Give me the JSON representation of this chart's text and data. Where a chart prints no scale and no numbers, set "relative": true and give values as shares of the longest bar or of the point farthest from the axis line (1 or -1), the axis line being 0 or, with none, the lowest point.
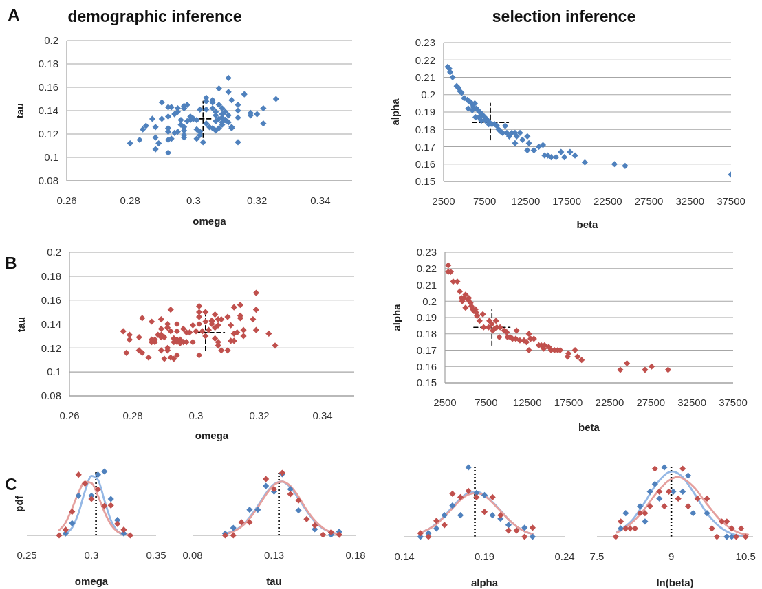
{
  "chart_data": [
    {
      "type": "scatter",
      "title": "demographic inference",
      "xlabel": "omega",
      "ylabel": "tau",
      "annotations": [
        "A"
      ],
      "xlim": [
        0.26,
        0.35
      ],
      "xticks": [
        0.26,
        0.28,
        0.3,
        0.32,
        0.34
      ],
      "ylim": [
        0.08,
        0.2
      ],
      "yticks": [
        0.08,
        0.1,
        0.12,
        0.14,
        0.16,
        0.18,
        0.2
      ],
      "grid": "y",
      "marker": "diamond",
      "series": [
        {
          "color": "#4f81bd",
          "x": [
            0.28,
            0.283,
            0.284,
            0.285,
            0.287,
            0.288,
            0.288,
            0.289,
            0.288,
            0.29,
            0.29,
            0.292,
            0.293,
            0.292,
            0.292,
            0.292,
            0.292,
            0.292,
            0.293,
            0.294,
            0.295,
            0.295,
            0.294,
            0.295,
            0.296,
            0.296,
            0.297,
            0.297,
            0.298,
            0.297,
            0.297,
            0.297,
            0.297,
            0.298,
            0.299,
            0.299,
            0.3,
            0.301,
            0.301,
            0.302,
            0.302,
            0.302,
            0.301,
            0.303,
            0.304,
            0.304,
            0.304,
            0.304,
            0.305,
            0.306,
            0.306,
            0.306,
            0.306,
            0.307,
            0.307,
            0.307,
            0.307,
            0.308,
            0.308,
            0.308,
            0.309,
            0.309,
            0.309,
            0.31,
            0.31,
            0.311,
            0.311,
            0.311,
            0.311,
            0.312,
            0.312,
            0.312,
            0.314,
            0.314,
            0.314,
            0.314,
            0.316,
            0.318,
            0.318,
            0.32,
            0.322,
            0.322,
            0.326,
            0.308,
            0.309,
            0.31,
            0.309
          ],
          "values": [
            0.112,
            0.115,
            0.124,
            0.127,
            0.133,
            0.126,
            0.107,
            0.112,
            0.117,
            0.147,
            0.133,
            0.143,
            0.143,
            0.135,
            0.125,
            0.122,
            0.115,
            0.104,
            0.116,
            0.137,
            0.139,
            0.142,
            0.121,
            0.122,
            0.132,
            0.128,
            0.142,
            0.144,
            0.145,
            0.119,
            0.117,
            0.123,
            0.126,
            0.131,
            0.135,
            0.132,
            0.133,
            0.132,
            0.124,
            0.141,
            0.122,
            0.119,
            0.116,
            0.113,
            0.151,
            0.148,
            0.141,
            0.129,
            0.126,
            0.125,
            0.149,
            0.147,
            0.142,
            0.139,
            0.136,
            0.131,
            0.123,
            0.125,
            0.159,
            0.145,
            0.142,
            0.137,
            0.134,
            0.132,
            0.139,
            0.136,
            0.156,
            0.168,
            0.13,
            0.126,
            0.149,
            0.125,
            0.145,
            0.14,
            0.134,
            0.113,
            0.154,
            0.136,
            0.138,
            0.137,
            0.142,
            0.129,
            0.15,
            0.133,
            0.13,
            0.132,
            0.128
          ]
        },
        {
          "type": "line",
          "color": "#000000",
          "line_style": "dashed",
          "marker": "none",
          "x": [
            0.303,
            0.303
          ],
          "values": [
            0.117,
            0.148
          ]
        },
        {
          "type": "line",
          "color": "#000000",
          "line_style": "dashed",
          "marker": "none",
          "x": [
            0.302,
            0.306
          ],
          "values": [
            0.133,
            0.133
          ]
        }
      ]
    },
    {
      "type": "scatter",
      "title": "selection inference",
      "xlabel": "beta",
      "ylabel": "alpha",
      "xlim": [
        2500,
        37500
      ],
      "xticks": [
        2500,
        7500,
        12500,
        17500,
        22500,
        27500,
        32500,
        37500
      ],
      "ylim": [
        0.15,
        0.23
      ],
      "yticks": [
        0.15,
        0.16,
        0.17,
        0.18,
        0.19,
        0.2,
        0.21,
        0.22,
        0.23
      ],
      "grid": "y",
      "marker": "diamond",
      "series": [
        {
          "color": "#4f81bd",
          "x": [
            3000,
            3200,
            3300,
            3600,
            4100,
            4300,
            4500,
            4700,
            5000,
            5400,
            5700,
            5900,
            6100,
            6300,
            6500,
            6700,
            6900,
            7100,
            7300,
            7500,
            7700,
            7900,
            8100,
            8400,
            8700,
            9000,
            9200,
            9400,
            9700,
            10000,
            10200,
            10500,
            10800,
            11200,
            11400,
            11800,
            12100,
            11200,
            12700,
            12900,
            12700,
            13500,
            14100,
            14600,
            14800,
            15200,
            15600,
            16200,
            16800,
            17200,
            17900,
            18500,
            19700,
            23300,
            24600,
            37500,
            5500,
            6000,
            6400,
            6800,
            7100,
            7600,
            8000
          ],
          "values": [
            0.216,
            0.215,
            0.213,
            0.21,
            0.205,
            0.204,
            0.202,
            0.201,
            0.198,
            0.197,
            0.196,
            0.195,
            0.193,
            0.195,
            0.192,
            0.191,
            0.19,
            0.189,
            0.188,
            0.187,
            0.186,
            0.185,
            0.184,
            0.183,
            0.183,
            0.182,
            0.18,
            0.179,
            0.178,
            0.182,
            0.178,
            0.176,
            0.178,
            0.178,
            0.176,
            0.178,
            0.174,
            0.172,
            0.176,
            0.172,
            0.168,
            0.168,
            0.17,
            0.171,
            0.165,
            0.165,
            0.164,
            0.164,
            0.167,
            0.164,
            0.167,
            0.165,
            0.161,
            0.16,
            0.159,
            0.154,
            0.192,
            0.191,
            0.187,
            0.187,
            0.185,
            0.185,
            0.183
          ]
        },
        {
          "type": "line",
          "color": "#000000",
          "line_style": "dashed",
          "marker": "none",
          "x": [
            8200,
            8200
          ],
          "values": [
            0.174,
            0.195
          ]
        },
        {
          "type": "line",
          "color": "#000000",
          "line_style": "dashed",
          "marker": "none",
          "x": [
            6000,
            10400
          ],
          "values": [
            0.184,
            0.184
          ]
        }
      ]
    },
    {
      "type": "scatter",
      "xlabel": "omega",
      "ylabel": "tau",
      "annotations": [
        "B"
      ],
      "xlim": [
        0.26,
        0.35
      ],
      "xticks": [
        0.26,
        0.28,
        0.3,
        0.32,
        0.34
      ],
      "ylim": [
        0.08,
        0.2
      ],
      "yticks": [
        0.08,
        0.1,
        0.12,
        0.14,
        0.16,
        0.18,
        0.2
      ],
      "grid": "y",
      "marker": "diamond",
      "series": [
        {
          "color": "#c0504d",
          "x": [
            0.277,
            0.278,
            0.279,
            0.279,
            0.282,
            0.282,
            0.283,
            0.283,
            0.285,
            0.286,
            0.286,
            0.286,
            0.287,
            0.287,
            0.288,
            0.289,
            0.289,
            0.289,
            0.289,
            0.289,
            0.29,
            0.29,
            0.291,
            0.291,
            0.291,
            0.291,
            0.292,
            0.292,
            0.292,
            0.293,
            0.293,
            0.293,
            0.294,
            0.294,
            0.294,
            0.294,
            0.294,
            0.295,
            0.295,
            0.296,
            0.296,
            0.297,
            0.297,
            0.298,
            0.299,
            0.299,
            0.3,
            0.301,
            0.301,
            0.301,
            0.301,
            0.301,
            0.302,
            0.303,
            0.303,
            0.303,
            0.304,
            0.305,
            0.305,
            0.305,
            0.306,
            0.306,
            0.306,
            0.307,
            0.307,
            0.307,
            0.307,
            0.308,
            0.308,
            0.31,
            0.31,
            0.311,
            0.311,
            0.312,
            0.312,
            0.312,
            0.313,
            0.314,
            0.314,
            0.314,
            0.315,
            0.315,
            0.318,
            0.319,
            0.319,
            0.319,
            0.323,
            0.325
          ],
          "values": [
            0.134,
            0.116,
            0.131,
            0.127,
            0.129,
            0.118,
            0.116,
            0.145,
            0.112,
            0.125,
            0.142,
            0.127,
            0.125,
            0.127,
            0.131,
            0.144,
            0.136,
            0.129,
            0.118,
            0.131,
            0.111,
            0.129,
            0.14,
            0.137,
            0.12,
            0.118,
            0.134,
            0.152,
            0.112,
            0.128,
            0.125,
            0.111,
            0.125,
            0.114,
            0.14,
            0.134,
            0.127,
            0.124,
            0.127,
            0.136,
            0.125,
            0.133,
            0.125,
            0.133,
            0.125,
            0.139,
            0.134,
            0.155,
            0.15,
            0.146,
            0.114,
            0.14,
            0.134,
            0.13,
            0.15,
            0.142,
            0.135,
            0.142,
            0.14,
            0.143,
            0.148,
            0.137,
            0.128,
            0.139,
            0.122,
            0.125,
            0.144,
            0.118,
            0.144,
            0.118,
            0.146,
            0.139,
            0.126,
            0.154,
            0.126,
            0.132,
            0.133,
            0.147,
            0.145,
            0.156,
            0.13,
            0.135,
            0.144,
            0.166,
            0.152,
            0.135,
            0.132,
            0.122
          ]
        },
        {
          "type": "line",
          "color": "#000000",
          "line_style": "dashed",
          "marker": "none",
          "x": [
            0.303,
            0.303
          ],
          "values": [
            0.118,
            0.148
          ]
        },
        {
          "type": "line",
          "color": "#000000",
          "line_style": "dashed",
          "marker": "none",
          "x": [
            0.3,
            0.309
          ],
          "values": [
            0.133,
            0.133
          ]
        }
      ]
    },
    {
      "type": "scatter",
      "xlabel": "beta",
      "ylabel": "alpha",
      "xlim": [
        2500,
        37500
      ],
      "xticks": [
        2500,
        7500,
        12500,
        17500,
        22500,
        27500,
        32500,
        37500
      ],
      "ylim": [
        0.15,
        0.23
      ],
      "yticks": [
        0.15,
        0.16,
        0.17,
        0.18,
        0.19,
        0.2,
        0.21,
        0.22,
        0.23
      ],
      "grid": "y",
      "marker": "diamond",
      "series": [
        {
          "color": "#c0504d",
          "x": [
            2900,
            2900,
            3200,
            3500,
            4000,
            4300,
            4500,
            4600,
            4800,
            5000,
            5000,
            5300,
            5400,
            5600,
            5700,
            5900,
            6000,
            6200,
            6300,
            6400,
            6700,
            7100,
            7200,
            7800,
            7900,
            8200,
            8300,
            8500,
            8700,
            8800,
            9100,
            9200,
            9700,
            10000,
            10100,
            10400,
            10700,
            11100,
            11200,
            11600,
            12100,
            12400,
            12700,
            12700,
            12900,
            13300,
            13900,
            14200,
            14500,
            14600,
            15100,
            15400,
            15800,
            16200,
            16500,
            17400,
            17500,
            18300,
            18600,
            19100,
            23800,
            24600,
            26800,
            27600,
            29600
          ],
          "values": [
            0.222,
            0.218,
            0.218,
            0.212,
            0.212,
            0.206,
            0.202,
            0.2,
            0.202,
            0.204,
            0.196,
            0.201,
            0.202,
            0.199,
            0.197,
            0.195,
            0.194,
            0.195,
            0.193,
            0.191,
            0.188,
            0.192,
            0.184,
            0.184,
            0.188,
            0.186,
            0.182,
            0.183,
            0.188,
            0.184,
            0.178,
            0.184,
            0.182,
            0.181,
            0.178,
            0.178,
            0.177,
            0.177,
            0.182,
            0.176,
            0.176,
            0.175,
            0.18,
            0.17,
            0.177,
            0.177,
            0.173,
            0.173,
            0.171,
            0.173,
            0.172,
            0.17,
            0.17,
            0.17,
            0.17,
            0.166,
            0.168,
            0.17,
            0.166,
            0.164,
            0.158,
            0.162,
            0.158,
            0.16,
            0.158
          ]
        },
        {
          "type": "line",
          "color": "#000000",
          "line_style": "dashed",
          "marker": "none",
          "x": [
            8200,
            8200
          ],
          "values": [
            0.173,
            0.195
          ]
        },
        {
          "type": "line",
          "color": "#000000",
          "line_style": "dashed",
          "marker": "none",
          "x": [
            6000,
            10400
          ],
          "values": [
            0.184,
            0.184
          ]
        }
      ]
    },
    {
      "type": "scatter",
      "xlabel": "omega",
      "ylabel": "pdf",
      "annotations": [
        "C"
      ],
      "relative": true,
      "xlim": [
        0.25,
        0.35
      ],
      "xticks": [
        0.25,
        0.3,
        0.35
      ],
      "marker": "diamond",
      "ref_lines": [
        {
          "axis": "x",
          "value": 0.3035,
          "color": "#000000",
          "line_style": "dotted"
        }
      ],
      "series": [
        {
          "color": "#4f81bd",
          "x": [
            0.28,
            0.285,
            0.29,
            0.3,
            0.305,
            0.31,
            0.315,
            0.32,
            0.325
          ],
          "values": [
            0.03,
            0.19,
            0.62,
            0.62,
            0.95,
            1.0,
            0.57,
            0.24,
            0.03
          ]
        },
        {
          "color": "#c0504d",
          "x": [
            0.275,
            0.28,
            0.285,
            0.29,
            0.295,
            0.3,
            0.305,
            0.31,
            0.315,
            0.32,
            0.325,
            0.33
          ],
          "values": [
            0,
            0.09,
            0.37,
            0.95,
            0.81,
            0.57,
            0.72,
            0.46,
            0.47,
            0.18,
            0.09,
            0
          ]
        },
        {
          "type": "line",
          "color": "#95b8e5",
          "marker": "none",
          "x": [
            0.28,
            0.285,
            0.29,
            0.295,
            0.3,
            0.305,
            0.31,
            0.315,
            0.32,
            0.325
          ],
          "values": [
            0.03,
            0.12,
            0.35,
            0.69,
            0.93,
            0.87,
            0.55,
            0.24,
            0.07,
            0.01
          ]
        },
        {
          "type": "line",
          "color": "#e5a09e",
          "marker": "none",
          "x": [
            0.275,
            0.28,
            0.285,
            0.29,
            0.295,
            0.3,
            0.305,
            0.31,
            0.315,
            0.32,
            0.325,
            0.33
          ],
          "values": [
            0.08,
            0.2,
            0.42,
            0.67,
            0.84,
            0.82,
            0.62,
            0.37,
            0.17,
            0.06,
            0.02,
            0.01
          ]
        }
      ]
    },
    {
      "type": "scatter",
      "xlabel": "tau",
      "relative": true,
      "xlim": [
        0.08,
        0.18
      ],
      "xticks": [
        0.08,
        0.13,
        0.18
      ],
      "marker": "diamond",
      "ref_lines": [
        {
          "axis": "x",
          "value": 0.133,
          "color": "#000000",
          "line_style": "dotted"
        }
      ],
      "series": [
        {
          "color": "#4f81bd",
          "x": [
            0.1,
            0.105,
            0.115,
            0.12,
            0.125,
            0.13,
            0.135,
            0.14,
            0.145,
            0.155,
            0.165,
            0.17
          ],
          "values": [
            0.03,
            0.12,
            0.41,
            0.41,
            0.79,
            0.7,
            0.98,
            0.74,
            0.4,
            0.1,
            0.01,
            0.06
          ]
        },
        {
          "color": "#c0504d",
          "x": [
            0.1,
            0.105,
            0.11,
            0.115,
            0.125,
            0.13,
            0.135,
            0.14,
            0.145,
            0.15,
            0.155,
            0.16,
            0.165,
            0.17
          ],
          "values": [
            0,
            0,
            0.21,
            0.21,
            0.9,
            0.74,
            1.0,
            0.66,
            0.56,
            0.26,
            0.16,
            0.01,
            0.05,
            0.01
          ]
        },
        {
          "type": "line",
          "color": "#95b8e5",
          "marker": "none",
          "x": [
            0.1,
            0.105,
            0.11,
            0.115,
            0.12,
            0.125,
            0.13,
            0.135,
            0.14,
            0.145,
            0.15,
            0.155,
            0.16,
            0.165,
            0.17
          ],
          "values": [
            0.03,
            0.07,
            0.15,
            0.29,
            0.47,
            0.67,
            0.82,
            0.86,
            0.77,
            0.59,
            0.39,
            0.22,
            0.11,
            0.05,
            0.02
          ]
        },
        {
          "type": "line",
          "color": "#e5a09e",
          "marker": "none",
          "x": [
            0.1,
            0.105,
            0.11,
            0.115,
            0.12,
            0.125,
            0.13,
            0.135,
            0.14,
            0.145,
            0.15,
            0.155,
            0.16,
            0.165,
            0.17
          ],
          "values": [
            0.02,
            0.06,
            0.14,
            0.27,
            0.45,
            0.65,
            0.81,
            0.86,
            0.79,
            0.62,
            0.41,
            0.24,
            0.12,
            0.05,
            0.02
          ]
        }
      ]
    },
    {
      "type": "scatter",
      "xlabel": "alpha",
      "relative": true,
      "xlim": [
        0.14,
        0.24
      ],
      "xticks": [
        0.14,
        0.19,
        0.24
      ],
      "marker": "diamond",
      "ref_lines": [
        {
          "axis": "x",
          "value": 0.184,
          "color": "#000000",
          "line_style": "dotted"
        }
      ],
      "series": [
        {
          "color": "#4f81bd",
          "x": [
            0.15,
            0.155,
            0.16,
            0.165,
            0.17,
            0.175,
            0.18,
            0.185,
            0.19,
            0.195,
            0.2,
            0.205,
            0.215,
            0.22
          ],
          "values": [
            0,
            0.05,
            0.12,
            0.31,
            0.45,
            0.31,
            1.0,
            0.63,
            0.6,
            0.31,
            0.26,
            0.17,
            0.13,
            0
          ]
        },
        {
          "color": "#c0504d",
          "x": [
            0.15,
            0.155,
            0.16,
            0.165,
            0.17,
            0.175,
            0.18,
            0.185,
            0.19,
            0.195,
            0.2,
            0.205,
            0.21,
            0.215,
            0.22
          ],
          "values": [
            0.05,
            0,
            0.23,
            0.17,
            0.62,
            0.57,
            0.66,
            0.57,
            0.36,
            0.57,
            0.31,
            0.09,
            0.09,
            0,
            0.13
          ]
        },
        {
          "type": "line",
          "color": "#95b8e5",
          "marker": "none",
          "x": [
            0.15,
            0.155,
            0.16,
            0.165,
            0.17,
            0.175,
            0.18,
            0.185,
            0.19,
            0.195,
            0.2,
            0.205,
            0.21,
            0.215,
            0.22
          ],
          "values": [
            0.06,
            0.11,
            0.19,
            0.3,
            0.43,
            0.55,
            0.63,
            0.65,
            0.6,
            0.5,
            0.38,
            0.25,
            0.15,
            0.08,
            0.04
          ]
        },
        {
          "type": "line",
          "color": "#e5a09e",
          "marker": "none",
          "x": [
            0.15,
            0.155,
            0.16,
            0.165,
            0.17,
            0.175,
            0.18,
            0.185,
            0.19,
            0.195,
            0.2,
            0.205,
            0.21,
            0.215,
            0.22
          ],
          "values": [
            0.06,
            0.11,
            0.18,
            0.29,
            0.41,
            0.53,
            0.61,
            0.63,
            0.59,
            0.49,
            0.37,
            0.25,
            0.15,
            0.08,
            0.04
          ]
        }
      ]
    },
    {
      "type": "scatter",
      "xlabel": "ln(beta)",
      "relative": true,
      "xlim": [
        7.5,
        10.65
      ],
      "xticks": [
        7.5,
        9,
        10.5
      ],
      "marker": "diamond",
      "ref_lines": [
        {
          "axis": "x",
          "value": 9,
          "color": "#000000",
          "line_style": "dotted"
        }
      ],
      "series": [
        {
          "color": "#4f81bd",
          "x": [
            7.98,
            8.08,
            8.37,
            8.47,
            8.57,
            8.67,
            8.76,
            8.86,
            9.04,
            9.23,
            9.34,
            9.44,
            9.72,
            10.12,
            10.22
          ],
          "values": [
            0.12,
            0.34,
            0.44,
            0.22,
            0.65,
            0.76,
            0.55,
            1.0,
            0.65,
            0.65,
            0.88,
            0.34,
            0.34,
            0,
            0
          ]
        },
        {
          "color": "#c0504d",
          "x": [
            7.88,
            7.98,
            8.08,
            8.17,
            8.27,
            8.37,
            8.47,
            8.57,
            8.67,
            8.76,
            8.86,
            8.95,
            9.14,
            9.23,
            9.34,
            9.53,
            9.72,
            9.82,
            9.92,
            10.02,
            10.12,
            10.22,
            10.31,
            10.41,
            10.5
          ],
          "values": [
            0,
            0.22,
            0.12,
            0.12,
            0.12,
            0.34,
            0.34,
            0.44,
            0.98,
            0.65,
            0.44,
            0.65,
            0.55,
            0.98,
            0.44,
            0.55,
            0.55,
            0.12,
            0,
            0.22,
            0.22,
            0.12,
            0,
            0.12,
            0
          ]
        },
        {
          "type": "line",
          "color": "#95b8e5",
          "marker": "none",
          "x": [
            7.9,
            8.2,
            8.45,
            8.7,
            8.95,
            9.02,
            9.2,
            9.45,
            9.7,
            9.95,
            10.2,
            10.45
          ],
          "values": [
            0.07,
            0.23,
            0.48,
            0.76,
            0.93,
            0.94,
            0.88,
            0.64,
            0.36,
            0.16,
            0.05,
            0.01
          ]
        },
        {
          "type": "line",
          "color": "#e5a09e",
          "marker": "none",
          "x": [
            7.9,
            8.2,
            8.45,
            8.7,
            8.95,
            9.13,
            9.45,
            9.7,
            9.95,
            10.2,
            10.45,
            10.55
          ],
          "values": [
            0.06,
            0.2,
            0.39,
            0.63,
            0.81,
            0.86,
            0.72,
            0.49,
            0.27,
            0.12,
            0.04,
            0.03
          ]
        }
      ]
    }
  ]
}
